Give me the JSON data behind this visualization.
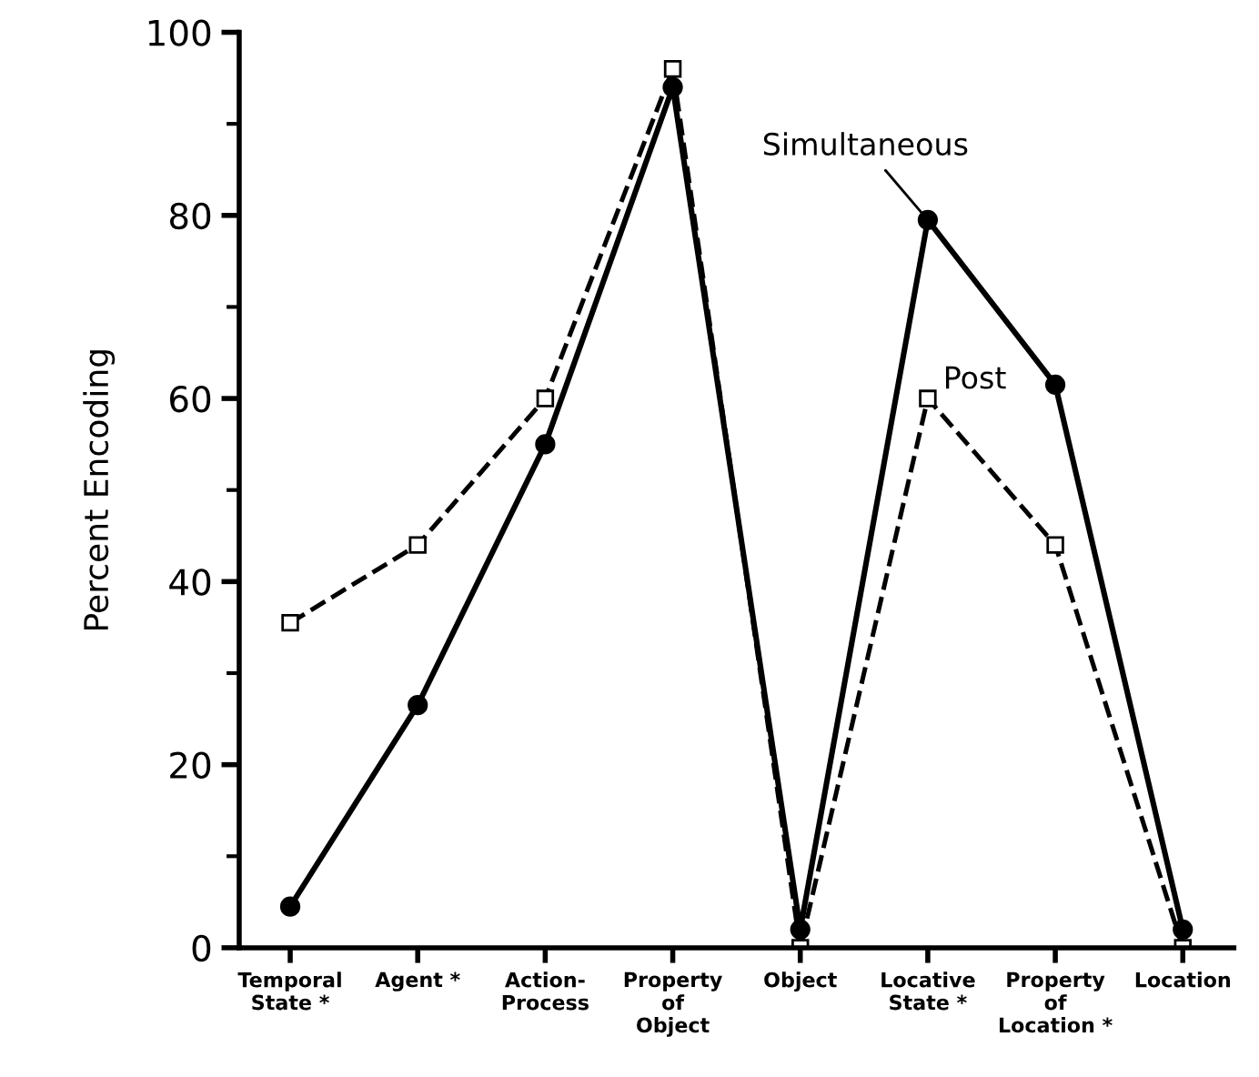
{
  "chart_data": {
    "type": "line",
    "ylabel": "Percent Encoding",
    "categories": [
      "Temporal\nState *",
      "Agent *",
      "Action-\nProcess",
      "Property\nof\nObject",
      "Object",
      "Locative\nState *",
      "Property\nof\nLocation *",
      "Location"
    ],
    "ylim": [
      0,
      100
    ],
    "yticks": [
      0,
      20,
      40,
      60,
      80,
      100
    ],
    "grid": false,
    "legend": false,
    "series": [
      {
        "name": "Simultaneous",
        "color": "#000000",
        "marker": "circle",
        "line_style": "solid",
        "values": [
          4.5,
          26.5,
          55,
          94,
          2,
          79.5,
          61.5,
          2
        ]
      },
      {
        "name": "Post",
        "color": "#000000",
        "marker": "square",
        "line_style": "dashed",
        "values": [
          35.5,
          44,
          60,
          96,
          0,
          60,
          44,
          0
        ]
      }
    ]
  }
}
